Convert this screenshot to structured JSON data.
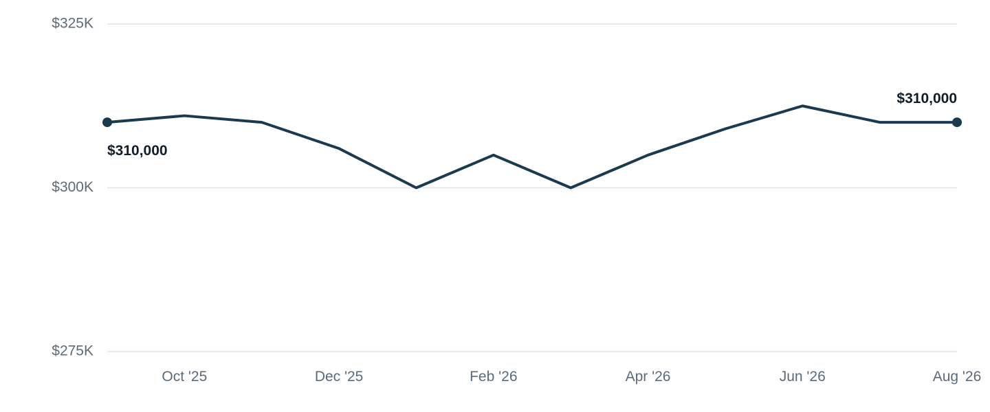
{
  "chart_data": {
    "type": "line",
    "x": [
      "2025-09",
      "2025-10",
      "2025-11",
      "2025-12",
      "2026-01",
      "2026-02",
      "2026-03",
      "2026-04",
      "2026-05",
      "2026-06",
      "2026-07",
      "2026-08"
    ],
    "x_tick_labels": [
      "Oct '25",
      "Dec '25",
      "Feb '26",
      "Apr '26",
      "Jun '26",
      "Aug '26"
    ],
    "x_tick_months": [
      "2025-10",
      "2025-12",
      "2026-02",
      "2026-04",
      "2026-06",
      "2026-08"
    ],
    "series": [
      {
        "values": [
          310000,
          311000,
          310000,
          306000,
          300000,
          305000,
          300000,
          305000,
          309000,
          312500,
          310000,
          310000
        ],
        "color": "#1b3a4f"
      }
    ],
    "ylim": [
      275000,
      325000
    ],
    "y_ticks": [
      275000,
      300000,
      325000
    ],
    "y_tick_labels": [
      "$275K",
      "$300K",
      "$325K"
    ],
    "annotations": [
      {
        "x": "2025-09",
        "value": 310000,
        "text": "$310,000",
        "position": "below"
      },
      {
        "x": "2026-08",
        "value": 310000,
        "text": "$310,000",
        "position": "above"
      }
    ],
    "grid": true,
    "title": "",
    "xlabel": "",
    "ylabel": ""
  }
}
